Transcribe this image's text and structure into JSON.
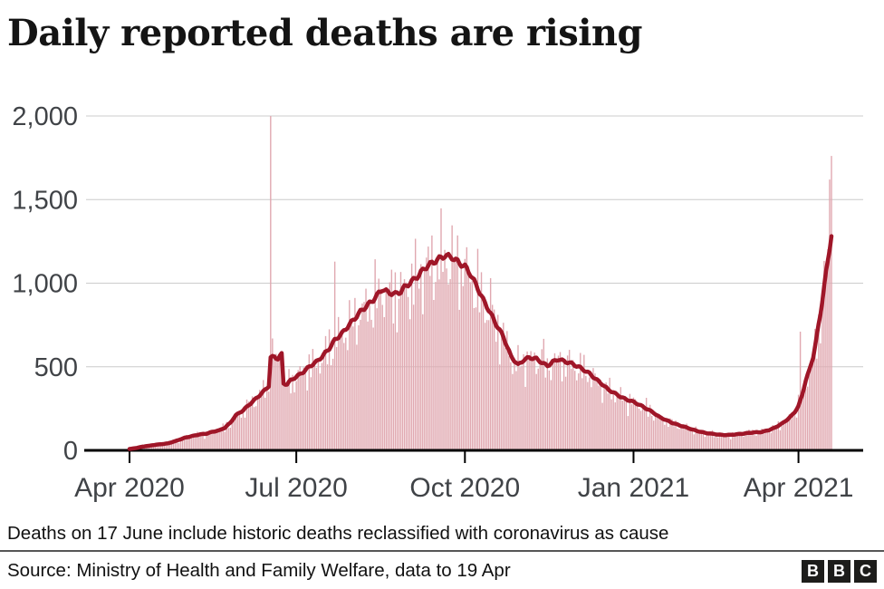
{
  "title": "Daily reported deaths are rising",
  "footnote": "Deaths on 17 June include historic deaths reclassified with coronavirus as cause",
  "source": "Source: Ministry of Health and Family Welfare, data to 19 Apr",
  "logo": {
    "letters": [
      "B",
      "B",
      "C"
    ]
  },
  "colors": {
    "bar": "#e0a8b0",
    "line": "#9f1628",
    "grid": "#cccccc",
    "axis": "#000000",
    "tick_label": "#404347",
    "title_text": "#141414",
    "body_text": "#111111"
  },
  "chart_data": {
    "type": "bar",
    "description": "Daily reported coronavirus deaths (pink bars) with 7-day average (dark red line), India",
    "x_start_date": "2020-04-01",
    "x_end_date": "2021-04-19",
    "days_total": 383,
    "ylim": [
      0,
      2000
    ],
    "y_ticks": [
      "0",
      "500",
      "1,000",
      "1,500",
      "2,000"
    ],
    "y_tick_values": [
      0,
      500,
      1000,
      1500,
      2000
    ],
    "x_ticks": [
      "Apr 2020",
      "Jul 2020",
      "Oct 2020",
      "Jan 2021",
      "Apr 2021"
    ],
    "x_tick_days": [
      0,
      91,
      183,
      275,
      365
    ],
    "grid": "horizontal-only",
    "legend": "none",
    "series": [
      {
        "name": "7-day average",
        "type": "line",
        "points_day_value": [
          [
            0,
            8
          ],
          [
            4,
            15
          ],
          [
            7,
            22
          ],
          [
            11,
            28
          ],
          [
            14,
            33
          ],
          [
            18,
            38
          ],
          [
            21,
            42
          ],
          [
            25,
            55
          ],
          [
            30,
            75
          ],
          [
            34,
            85
          ],
          [
            38,
            95
          ],
          [
            42,
            100
          ],
          [
            45,
            110
          ],
          [
            49,
            120
          ],
          [
            52,
            135
          ],
          [
            55,
            165
          ],
          [
            58,
            210
          ],
          [
            62,
            240
          ],
          [
            65,
            270
          ],
          [
            68,
            300
          ],
          [
            72,
            340
          ],
          [
            76,
            385
          ],
          [
            77,
            555
          ],
          [
            79,
            560
          ],
          [
            81,
            548
          ],
          [
            83,
            575
          ],
          [
            84,
            400
          ],
          [
            86,
            395
          ],
          [
            88,
            420
          ],
          [
            91,
            440
          ],
          [
            95,
            470
          ],
          [
            98,
            500
          ],
          [
            102,
            530
          ],
          [
            105,
            560
          ],
          [
            109,
            610
          ],
          [
            112,
            660
          ],
          [
            116,
            700
          ],
          [
            119,
            740
          ],
          [
            123,
            790
          ],
          [
            126,
            830
          ],
          [
            130,
            870
          ],
          [
            133,
            900
          ],
          [
            136,
            940
          ],
          [
            138,
            965
          ],
          [
            141,
            945
          ],
          [
            145,
            935
          ],
          [
            148,
            950
          ],
          [
            150,
            975
          ],
          [
            154,
            1010
          ],
          [
            158,
            1050
          ],
          [
            161,
            1090
          ],
          [
            165,
            1120
          ],
          [
            168,
            1140
          ],
          [
            172,
            1165
          ],
          [
            176,
            1155
          ],
          [
            180,
            1120
          ],
          [
            183,
            1100
          ],
          [
            186,
            1055
          ],
          [
            190,
            970
          ],
          [
            193,
            900
          ],
          [
            196,
            840
          ],
          [
            200,
            755
          ],
          [
            204,
            680
          ],
          [
            208,
            565
          ],
          [
            212,
            510
          ],
          [
            215,
            540
          ],
          [
            218,
            555
          ],
          [
            222,
            548
          ],
          [
            225,
            525
          ],
          [
            228,
            505
          ],
          [
            231,
            530
          ],
          [
            234,
            545
          ],
          [
            238,
            530
          ],
          [
            241,
            520
          ],
          [
            245,
            500
          ],
          [
            248,
            480
          ],
          [
            251,
            460
          ],
          [
            254,
            430
          ],
          [
            258,
            395
          ],
          [
            261,
            365
          ],
          [
            265,
            340
          ],
          [
            268,
            320
          ],
          [
            271,
            305
          ],
          [
            275,
            290
          ],
          [
            279,
            268
          ],
          [
            282,
            250
          ],
          [
            286,
            225
          ],
          [
            289,
            200
          ],
          [
            293,
            180
          ],
          [
            296,
            165
          ],
          [
            300,
            150
          ],
          [
            303,
            140
          ],
          [
            307,
            125
          ],
          [
            310,
            115
          ],
          [
            314,
            105
          ],
          [
            317,
            100
          ],
          [
            321,
            95
          ],
          [
            324,
            92
          ],
          [
            328,
            93
          ],
          [
            331,
            96
          ],
          [
            335,
            100
          ],
          [
            338,
            105
          ],
          [
            342,
            108
          ],
          [
            345,
            110
          ],
          [
            349,
            122
          ],
          [
            352,
            135
          ],
          [
            356,
            160
          ],
          [
            359,
            185
          ],
          [
            361,
            205
          ],
          [
            363,
            230
          ],
          [
            365,
            265
          ],
          [
            367,
            330
          ],
          [
            369,
            420
          ],
          [
            371,
            480
          ],
          [
            373,
            560
          ],
          [
            375,
            680
          ],
          [
            377,
            820
          ],
          [
            379,
            980
          ],
          [
            381,
            1130
          ],
          [
            382,
            1210
          ],
          [
            383,
            1295
          ]
        ]
      },
      {
        "name": "Daily reported deaths",
        "type": "bar",
        "derived_from": "7-day average",
        "weekday_factors": [
          0.96,
          1.05,
          1.08,
          1.03,
          1.0,
          0.93,
          0.84
        ],
        "outlier_bars_day_value": [
          [
            77,
            2003
          ],
          [
            83,
            580
          ],
          [
            112,
            1129
          ],
          [
            145,
            1065
          ],
          [
            197,
            1030
          ],
          [
            225,
            605
          ],
          [
            366,
            710
          ],
          [
            382,
            1620
          ],
          [
            383,
            1761
          ]
        ],
        "clip_note": "Bar of 2,003 deaths on 17 June 2020 is clipped at the 2,000 axis maximum"
      }
    ]
  }
}
